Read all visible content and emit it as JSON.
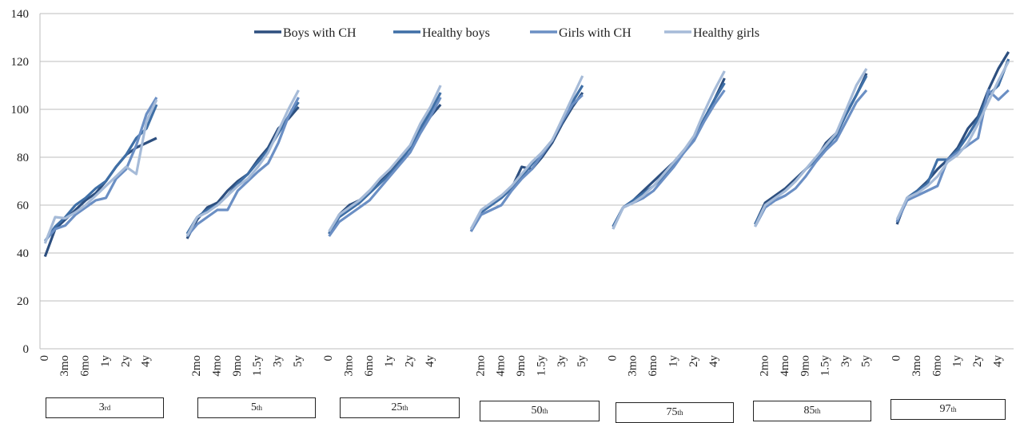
{
  "chart_data": {
    "type": "line",
    "ylim": [
      0,
      140
    ],
    "yticks": [
      0,
      20,
      40,
      60,
      80,
      100,
      120,
      140
    ],
    "grid": true,
    "legend_position": "top",
    "series_colors": [
      "#2d4f7f",
      "#3f6fa6",
      "#6b8fc4",
      "#a6bbd8"
    ],
    "groups": [
      {
        "label": "3",
        "suffix": "rd",
        "x": [
          "0",
          "",
          "3mo",
          "",
          "6mo",
          "",
          "1y",
          "",
          "2y",
          "",
          "4y",
          ""
        ],
        "series": [
          {
            "name": "Boys with CH",
            "values": [
              38.5,
              50,
              54,
              58,
              62,
              65,
              70,
              76,
              81,
              84,
              86,
              88
            ]
          },
          {
            "name": "Healthy boys",
            "values": [
              45,
              51,
              55,
              60,
              63,
              67,
              70,
              76,
              81,
              88,
              92,
              102
            ]
          },
          {
            "name": "Girls with CH",
            "values": [
              45,
              50,
              51.5,
              56,
              59,
              62,
              63,
              71,
              75,
              85,
              98,
              105
            ]
          },
          {
            "name": "Healthy girls",
            "values": [
              44,
              55,
              54.5,
              57,
              60,
              64,
              68,
              72,
              76,
              73,
              95,
              104
            ]
          }
        ]
      },
      {
        "label": "5",
        "suffix": "th",
        "x": [
          "",
          "2mo",
          "",
          "4mo",
          "",
          "9mo",
          "",
          "1.5y",
          "",
          "3y",
          "",
          "5y"
        ],
        "series": [
          {
            "name": "Boys with CH",
            "values": [
              46,
              54,
              59,
              61,
              66,
              70,
              73,
              79,
              84,
              92,
              96,
              101
            ]
          },
          {
            "name": "Healthy boys",
            "values": [
              48,
              55,
              58,
              60,
              64,
              69,
              73,
              78,
              83,
              90,
              97,
              103
            ]
          },
          {
            "name": "Girls with CH",
            "values": [
              47,
              52,
              55,
              58,
              58,
              66,
              70,
              74,
              77.5,
              86,
              97,
              105
            ]
          },
          {
            "name": "Healthy girls",
            "values": [
              47,
              55,
              57,
              60,
              64,
              68,
              71,
              76,
              82,
              91,
              100,
              108
            ]
          }
        ]
      },
      {
        "label": "25",
        "suffix": "th",
        "x": [
          "0",
          "",
          "3mo",
          "",
          "6mo",
          "",
          "1y",
          "",
          "2y",
          "",
          "4y",
          ""
        ],
        "series": [
          {
            "name": "Boys with CH",
            "values": [
              48,
              56,
              60,
              62,
              66,
              70,
              74,
              79,
              84,
              91,
              97,
              102
            ]
          },
          {
            "name": "Healthy boys",
            "values": [
              48,
              55,
              58,
              61,
              65,
              69,
              73,
              78,
              84,
              92,
              99,
              107
            ]
          },
          {
            "name": "Girls with CH",
            "values": [
              47,
              53,
              56,
              59,
              62,
              67,
              72,
              77,
              82,
              90,
              97,
              105
            ]
          },
          {
            "name": "Healthy girls",
            "values": [
              49,
              56,
              59,
              62,
              66,
              71,
              75,
              80,
              85,
              94,
              101,
              110
            ]
          }
        ]
      },
      {
        "label": "50",
        "suffix": "th",
        "x": [
          "",
          "2mo",
          "",
          "4mo",
          "",
          "9mo",
          "",
          "1.5y",
          "",
          "3y",
          "",
          "5y"
        ],
        "series": [
          {
            "name": "Boys with CH",
            "values": [
              49,
              57,
              61,
              64,
              67,
              76,
              75,
              80,
              86,
              94,
              101,
              107
            ]
          },
          {
            "name": "Healthy boys",
            "values": [
              50,
              57,
              60,
              63,
              67,
              72,
              77,
              82,
              87,
              95,
              103,
              110
            ]
          },
          {
            "name": "Girls with CH",
            "values": [
              49,
              56,
              58,
              60,
              66,
              71,
              75,
              81,
              87,
              95,
              102,
              106
            ]
          },
          {
            "name": "Healthy girls",
            "values": [
              50,
              58,
              61,
              64,
              68,
              73,
              78,
              82,
              87,
              96,
              105,
              114
            ]
          }
        ]
      },
      {
        "label": "75",
        "suffix": "th",
        "x": [
          "0",
          "",
          "3mo",
          "",
          "6mo",
          "",
          "1y",
          "",
          "2y",
          "",
          "4y",
          ""
        ],
        "series": [
          {
            "name": "Boys with CH",
            "values": [
              51,
              59,
              62,
              66,
              70,
              74,
              78,
              83,
              88,
              96,
              104,
              113
            ]
          },
          {
            "name": "Healthy boys",
            "values": [
              51,
              59,
              62,
              65,
              68,
              72,
              77,
              82,
              87,
              96,
              104,
              111
            ]
          },
          {
            "name": "Girls with CH",
            "values": [
              50,
              59,
              61,
              63,
              66,
              71,
              76,
              82,
              87,
              95,
              102,
              108
            ]
          },
          {
            "name": "Healthy girls",
            "values": [
              50,
              59,
              61,
              64,
              68,
              73,
              78,
              83,
              89,
              99,
              108,
              116
            ]
          }
        ]
      },
      {
        "label": "85",
        "suffix": "th",
        "x": [
          "",
          "2mo",
          "",
          "4mo",
          "",
          "9mo",
          "",
          "1.5y",
          "",
          "3y",
          "",
          "5y"
        ],
        "series": [
          {
            "name": "Boys with CH",
            "values": [
              52,
              61,
              64,
              67,
              71,
              75,
              79,
              86,
              90,
              98,
              106,
              115
            ]
          },
          {
            "name": "Healthy boys",
            "values": [
              52,
              60,
              63,
              66,
              70,
              75,
              79,
              84,
              89,
              98,
              106,
              114
            ]
          },
          {
            "name": "Girls with CH",
            "values": [
              51,
              59,
              62,
              64,
              67,
              72,
              78,
              83,
              87,
              95,
              103,
              108
            ]
          },
          {
            "name": "Healthy girls",
            "values": [
              51,
              60,
              63,
              66,
              70,
              75,
              80,
              85,
              90,
              100,
              110,
              117
            ]
          }
        ]
      },
      {
        "label": "97",
        "suffix": "th",
        "x": [
          "0",
          "",
          "3mo",
          "",
          "6mo",
          "",
          "1y",
          "",
          "2y",
          "",
          "4y",
          ""
        ],
        "series": [
          {
            "name": "Boys with CH",
            "values": [
              52,
              63,
              66,
              70,
              75,
              79,
              84,
              92,
              97,
              108,
              117,
              124
            ]
          },
          {
            "name": "Healthy boys",
            "values": [
              53,
              63,
              66,
              69,
              79,
              79,
              83,
              89,
              96,
              106,
              110,
              121
            ]
          },
          {
            "name": "Girls with CH",
            "values": [
              53,
              62,
              64,
              66,
              68,
              79,
              82,
              85,
              88,
              108,
              104,
              108
            ]
          },
          {
            "name": "Healthy girls",
            "values": [
              54,
              63,
              65,
              68,
              72,
              78,
              81,
              86,
              94,
              103,
              112,
              120
            ]
          }
        ]
      }
    ]
  }
}
